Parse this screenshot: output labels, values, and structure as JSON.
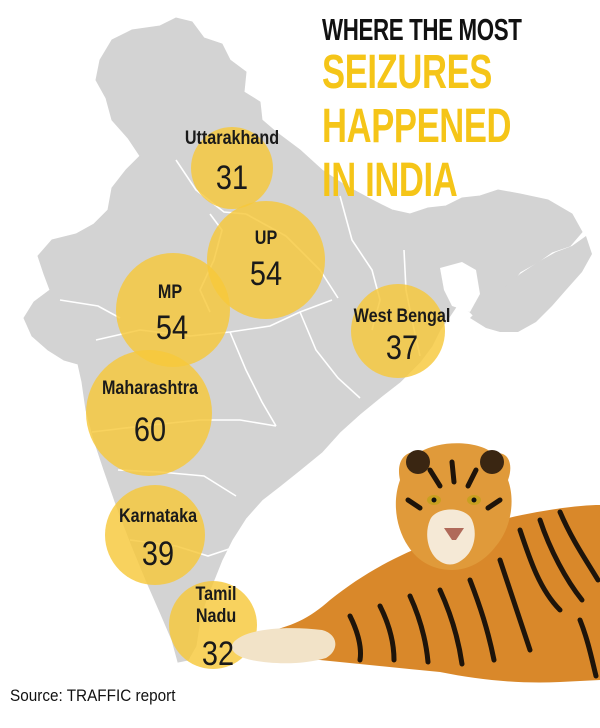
{
  "title": {
    "line1": "WHERE THE MOST",
    "line2": "SEIZURES",
    "line3": "HAPPENED",
    "line4": "IN INDIA"
  },
  "colors": {
    "accent": "#F5C518",
    "bubble": "#F6C83A",
    "land": "#D3D3D3",
    "border": "#FFFFFF",
    "text": "#111111"
  },
  "states": [
    {
      "id": "uttarakhand",
      "name": "Uttarakhand",
      "count": "31"
    },
    {
      "id": "up",
      "name": "UP",
      "count": "54"
    },
    {
      "id": "mp",
      "name": "MP",
      "count": "54"
    },
    {
      "id": "west-bengal",
      "name": "West Bengal",
      "count": "37"
    },
    {
      "id": "maharashtra",
      "name": "Maharashtra",
      "count": "60"
    },
    {
      "id": "karnataka",
      "name": "Karnataka",
      "count": "39"
    },
    {
      "id": "tamil-nadu",
      "name_line1": "Tamil",
      "name_line2": "Nadu",
      "count": "32"
    }
  ],
  "source": "Source: TRAFFIC report",
  "illustration": "tiger"
}
